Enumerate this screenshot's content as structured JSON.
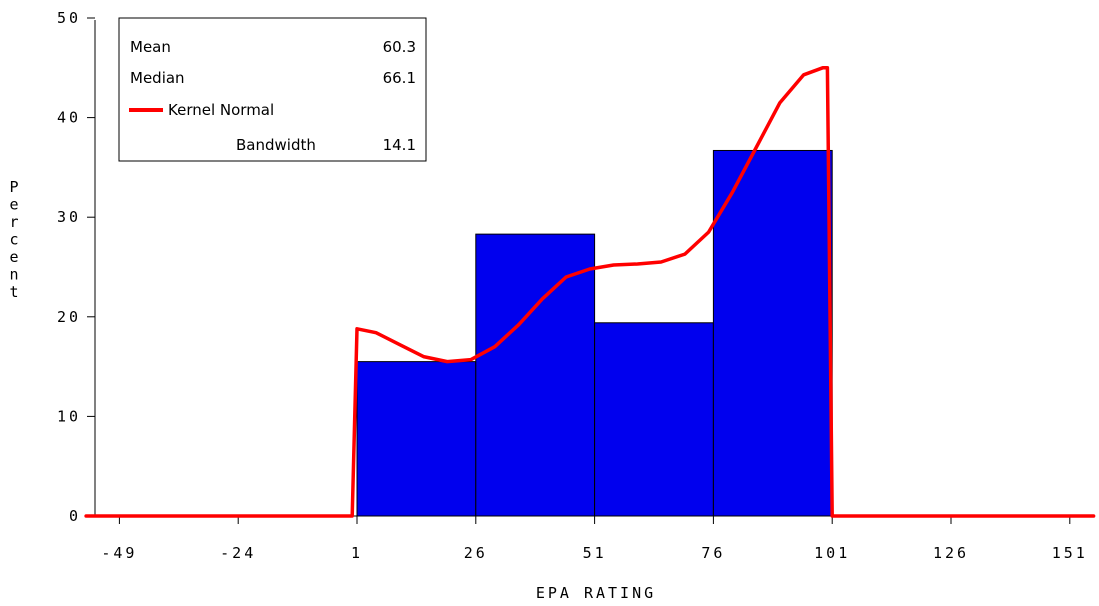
{
  "chart_data": {
    "type": "histogram",
    "xlabel": "EPA RATING",
    "ylabel": "Percent",
    "x_ticks": [
      "-49",
      "-24",
      "1",
      "26",
      "51",
      "76",
      "101",
      "126",
      "151"
    ],
    "x_tick_values": [
      -49,
      -24,
      1,
      26,
      51,
      76,
      101,
      126,
      151
    ],
    "y_ticks": [
      "0",
      "10",
      "20",
      "30",
      "40",
      "50"
    ],
    "y_tick_values": [
      0,
      10,
      20,
      30,
      40,
      50
    ],
    "xlim": [
      -51,
      156
    ],
    "ylim": [
      0,
      50
    ],
    "grid": false,
    "bins": [
      {
        "from": 1,
        "to": 26,
        "percent": 15.5
      },
      {
        "from": 26,
        "to": 51,
        "percent": 28.3
      },
      {
        "from": 51,
        "to": 76,
        "percent": 19.4
      },
      {
        "from": 76,
        "to": 101,
        "percent": 36.7
      }
    ],
    "bar_color": "#0000ee",
    "kernel_curve": {
      "name": "Kernel Normal",
      "color": "#ff0000",
      "x": [
        -56,
        0,
        1,
        5,
        10,
        15,
        20,
        25,
        30,
        35,
        40,
        45,
        50,
        55,
        60,
        65,
        70,
        75,
        80,
        85,
        90,
        95,
        99,
        100,
        101,
        156
      ],
      "y": [
        0,
        0,
        18.8,
        18.4,
        17.2,
        16.0,
        15.5,
        15.7,
        17.0,
        19.2,
        21.8,
        24.0,
        24.8,
        25.2,
        25.3,
        25.5,
        26.3,
        28.5,
        32.5,
        37.0,
        41.5,
        44.3,
        45.0,
        45.0,
        0,
        0
      ]
    },
    "legend": {
      "placement": "top-left",
      "stats": [
        {
          "label": "Mean",
          "value": "60.3"
        },
        {
          "label": "Median",
          "value": "66.1"
        }
      ],
      "kernel_label": "Kernel Normal",
      "bandwidth_label": "Bandwidth",
      "bandwidth_value": "14.1"
    }
  }
}
